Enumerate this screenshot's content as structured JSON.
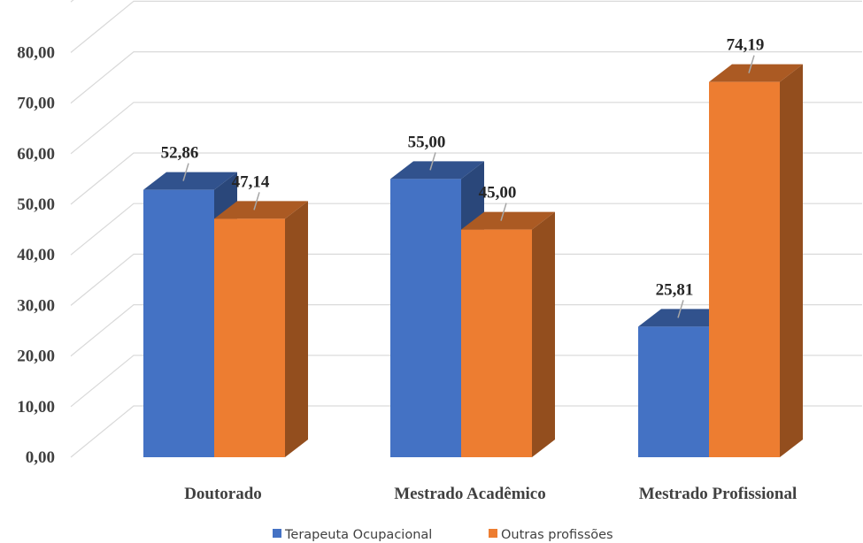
{
  "chart_data": {
    "type": "bar",
    "categories": [
      "Doutorado",
      "Mestrado Acadêmico",
      "Mestrado Profissional"
    ],
    "series": [
      {
        "name": "Terapeuta Ocupacional",
        "values": [
          52.86,
          55.0,
          25.81
        ],
        "labels": [
          "52,86",
          "55,00",
          "25,81"
        ],
        "color": "#4472C4"
      },
      {
        "name": "Outras profissões",
        "values": [
          47.14,
          45.0,
          74.19
        ],
        "labels": [
          "47,14",
          "45,00",
          "74,19"
        ],
        "color": "#ED7D31"
      }
    ],
    "y_ticks": [
      "0,00",
      "10,00",
      "20,00",
      "30,00",
      "40,00",
      "50,00",
      "60,00",
      "70,00",
      "80,00"
    ],
    "ylim": [
      0,
      90
    ],
    "grid": true,
    "legend_position": "bottom",
    "style": "3d-clustered-column"
  }
}
